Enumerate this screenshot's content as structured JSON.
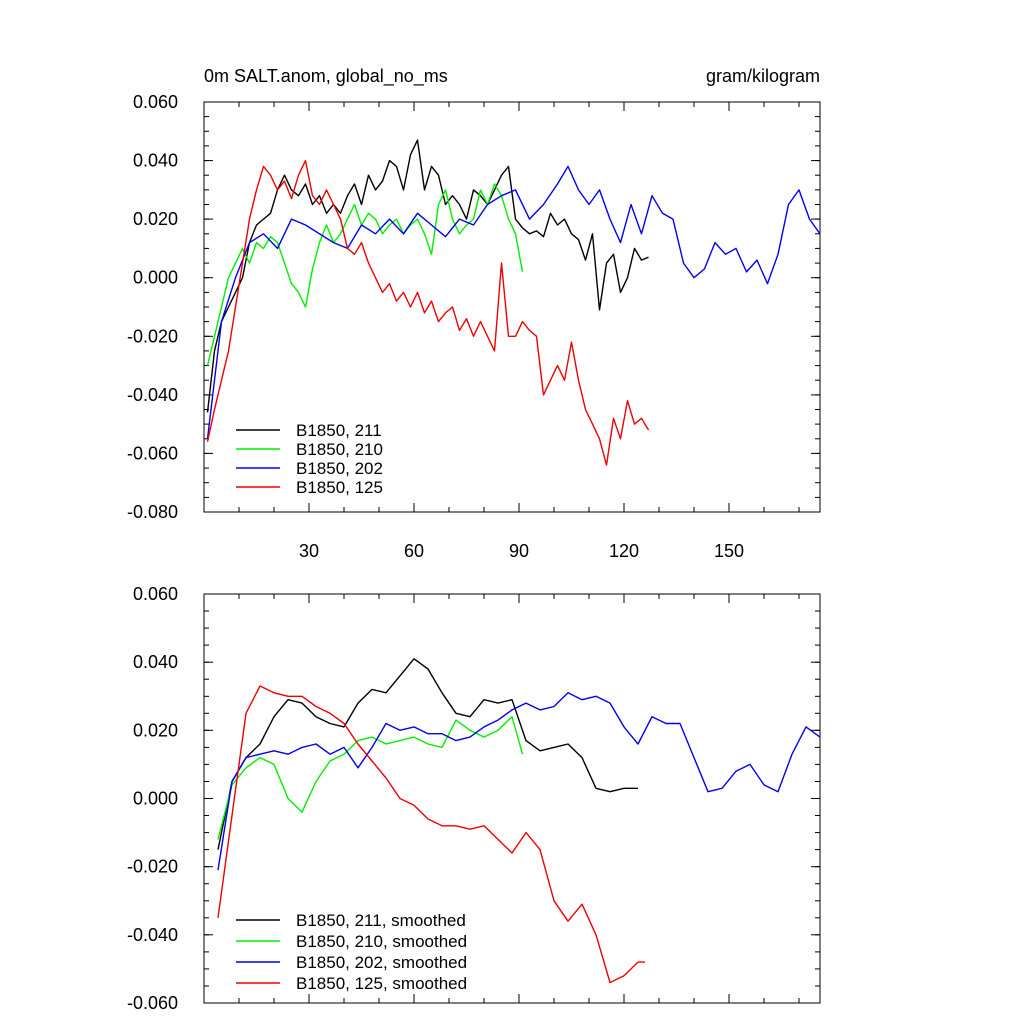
{
  "header": {
    "title_left": "0m SALT.anom, global_no_ms",
    "title_right": "gram/kilogram"
  },
  "colors": {
    "s211": "#000000",
    "s210": "#00ee00",
    "s202": "#0000ee",
    "s125": "#ee0000"
  },
  "chart_data": [
    {
      "type": "line",
      "title": "0m SALT.anom, global_no_ms",
      "units": "gram/kilogram",
      "xlim": [
        0,
        176
      ],
      "ylim": [
        -0.08,
        0.06
      ],
      "xticks": [
        30,
        60,
        90,
        120,
        150
      ],
      "xtick_labels": [
        "30",
        "60",
        "90",
        "120",
        "150"
      ],
      "yticks": [
        0.06,
        0.04,
        0.02,
        0.0,
        -0.02,
        -0.04,
        -0.06,
        -0.08
      ],
      "ytick_labels": [
        "0.060",
        "0.040",
        "0.020",
        "0.000",
        "-0.020",
        "-0.040",
        "-0.060",
        "-0.080"
      ],
      "legend_position": "bottom-left",
      "series": [
        {
          "name": "B1850, 211",
          "color_key": "s211",
          "x": [
            1,
            3,
            5,
            7,
            9,
            11,
            13,
            15,
            17,
            19,
            21,
            23,
            25,
            27,
            29,
            31,
            33,
            35,
            37,
            39,
            41,
            43,
            45,
            47,
            49,
            51,
            53,
            55,
            57,
            59,
            61,
            63,
            65,
            67,
            69,
            71,
            73,
            75,
            77,
            79,
            81,
            83,
            85,
            87,
            89,
            91,
            93,
            95,
            97,
            99,
            101,
            103,
            105,
            107,
            109,
            111,
            113,
            115,
            117,
            119,
            121,
            123,
            125,
            127
          ],
          "y": [
            -0.046,
            -0.025,
            -0.015,
            -0.01,
            -0.005,
            0.0,
            0.012,
            0.018,
            0.02,
            0.022,
            0.03,
            0.035,
            0.03,
            0.028,
            0.032,
            0.025,
            0.028,
            0.022,
            0.025,
            0.022,
            0.028,
            0.032,
            0.025,
            0.035,
            0.03,
            0.033,
            0.04,
            0.038,
            0.03,
            0.042,
            0.047,
            0.03,
            0.038,
            0.035,
            0.025,
            0.028,
            0.025,
            0.02,
            0.03,
            0.028,
            0.025,
            0.03,
            0.035,
            0.038,
            0.02,
            0.017,
            0.015,
            0.016,
            0.014,
            0.022,
            0.018,
            0.02,
            0.015,
            0.013,
            0.006,
            0.015,
            -0.011,
            0.005,
            0.008,
            -0.005,
            0.0,
            0.01,
            0.006,
            0.007
          ]
        },
        {
          "name": "B1850, 210",
          "color_key": "s210",
          "x": [
            1,
            3,
            5,
            7,
            9,
            11,
            13,
            15,
            17,
            19,
            21,
            23,
            25,
            27,
            29,
            31,
            33,
            35,
            37,
            39,
            41,
            43,
            45,
            47,
            49,
            51,
            53,
            55,
            57,
            59,
            61,
            63,
            65,
            67,
            69,
            71,
            73,
            75,
            77,
            79,
            81,
            83,
            85,
            87,
            89,
            91
          ],
          "y": [
            -0.03,
            -0.02,
            -0.01,
            0.0,
            0.005,
            0.01,
            0.005,
            0.012,
            0.01,
            0.014,
            0.012,
            0.005,
            -0.002,
            -0.005,
            -0.01,
            0.003,
            0.012,
            0.018,
            0.012,
            0.015,
            0.02,
            0.025,
            0.018,
            0.022,
            0.02,
            0.015,
            0.018,
            0.02,
            0.015,
            0.018,
            0.02,
            0.015,
            0.008,
            0.025,
            0.03,
            0.02,
            0.015,
            0.018,
            0.02,
            0.03,
            0.025,
            0.032,
            0.028,
            0.02,
            0.015,
            0.002
          ]
        },
        {
          "name": "B1850, 202",
          "color_key": "s202",
          "x": [
            1,
            5,
            9,
            13,
            17,
            21,
            25,
            29,
            33,
            37,
            41,
            45,
            49,
            53,
            57,
            61,
            65,
            69,
            73,
            77,
            81,
            85,
            89,
            93,
            97,
            101,
            104,
            107,
            110,
            113,
            116,
            119,
            122,
            125,
            128,
            131,
            134,
            137,
            140,
            143,
            146,
            149,
            152,
            155,
            158,
            161,
            164,
            167,
            170,
            173,
            176
          ],
          "y": [
            -0.055,
            -0.015,
            0.0,
            0.012,
            0.015,
            0.01,
            0.02,
            0.018,
            0.015,
            0.012,
            0.01,
            0.018,
            0.015,
            0.02,
            0.015,
            0.022,
            0.018,
            0.014,
            0.02,
            0.018,
            0.025,
            0.028,
            0.03,
            0.02,
            0.025,
            0.032,
            0.038,
            0.03,
            0.025,
            0.03,
            0.02,
            0.012,
            0.025,
            0.015,
            0.028,
            0.022,
            0.02,
            0.005,
            0.0,
            0.003,
            0.012,
            0.008,
            0.01,
            0.002,
            0.006,
            -0.002,
            0.008,
            0.025,
            0.03,
            0.02,
            0.015
          ]
        },
        {
          "name": "B1850, 125",
          "color_key": "s125",
          "x": [
            1,
            3,
            5,
            7,
            9,
            11,
            13,
            15,
            17,
            19,
            21,
            23,
            25,
            27,
            29,
            31,
            33,
            35,
            37,
            39,
            41,
            43,
            45,
            47,
            49,
            51,
            53,
            55,
            57,
            59,
            61,
            63,
            65,
            67,
            69,
            71,
            73,
            75,
            77,
            79,
            81,
            83,
            85,
            87,
            89,
            91,
            93,
            95,
            97,
            99,
            101,
            103,
            105,
            107,
            109,
            111,
            113,
            115,
            117,
            119,
            121,
            123,
            125,
            127
          ],
          "y": [
            -0.056,
            -0.045,
            -0.035,
            -0.025,
            -0.01,
            0.005,
            0.02,
            0.03,
            0.038,
            0.035,
            0.03,
            0.033,
            0.027,
            0.035,
            0.04,
            0.028,
            0.025,
            0.03,
            0.025,
            0.02,
            0.01,
            0.008,
            0.012,
            0.005,
            0.0,
            -0.005,
            -0.002,
            -0.008,
            -0.005,
            -0.01,
            -0.005,
            -0.012,
            -0.008,
            -0.015,
            -0.012,
            -0.01,
            -0.018,
            -0.014,
            -0.02,
            -0.015,
            -0.02,
            -0.025,
            0.005,
            -0.02,
            -0.02,
            -0.015,
            -0.018,
            -0.02,
            -0.04,
            -0.035,
            -0.03,
            -0.035,
            -0.022,
            -0.035,
            -0.045,
            -0.05,
            -0.055,
            -0.064,
            -0.048,
            -0.055,
            -0.042,
            -0.05,
            -0.048,
            -0.052
          ]
        }
      ]
    },
    {
      "type": "line",
      "xlim": [
        0,
        176
      ],
      "ylim": [
        -0.06,
        0.06
      ],
      "yticks": [
        0.06,
        0.04,
        0.02,
        0.0,
        -0.02,
        -0.04,
        -0.06
      ],
      "ytick_labels": [
        "0.060",
        "0.040",
        "0.020",
        "0.000",
        "-0.020",
        "-0.040",
        "-0.060"
      ],
      "legend_position": "bottom-left",
      "series": [
        {
          "name": "B1850, 211, smoothed",
          "color_key": "s211",
          "x": [
            4,
            8,
            12,
            16,
            20,
            24,
            28,
            32,
            36,
            40,
            44,
            48,
            52,
            56,
            60,
            64,
            68,
            72,
            76,
            80,
            84,
            88,
            92,
            96,
            100,
            104,
            108,
            112,
            116,
            120,
            124
          ],
          "y": [
            -0.015,
            0.005,
            0.012,
            0.016,
            0.024,
            0.029,
            0.028,
            0.024,
            0.022,
            0.021,
            0.028,
            0.032,
            0.031,
            0.036,
            0.041,
            0.038,
            0.031,
            0.025,
            0.024,
            0.029,
            0.028,
            0.029,
            0.017,
            0.014,
            0.015,
            0.016,
            0.012,
            0.003,
            0.002,
            0.003,
            0.003
          ]
        },
        {
          "name": "B1850, 210, smoothed",
          "color_key": "s210",
          "x": [
            4,
            8,
            12,
            16,
            20,
            24,
            28,
            32,
            36,
            40,
            44,
            48,
            52,
            56,
            60,
            64,
            68,
            72,
            76,
            80,
            84,
            88,
            91
          ],
          "y": [
            -0.012,
            0.004,
            0.009,
            0.012,
            0.01,
            0.0,
            -0.004,
            0.005,
            0.011,
            0.013,
            0.017,
            0.018,
            0.016,
            0.017,
            0.018,
            0.016,
            0.015,
            0.023,
            0.02,
            0.018,
            0.02,
            0.024,
            0.013
          ]
        },
        {
          "name": "B1850, 202, smoothed",
          "color_key": "s202",
          "x": [
            4,
            8,
            12,
            16,
            20,
            24,
            28,
            32,
            36,
            40,
            44,
            48,
            52,
            56,
            60,
            64,
            68,
            72,
            76,
            80,
            84,
            88,
            92,
            96,
            100,
            104,
            108,
            112,
            116,
            120,
            124,
            128,
            132,
            136,
            140,
            144,
            148,
            152,
            156,
            160,
            164,
            168,
            172,
            176
          ],
          "y": [
            -0.021,
            0.005,
            0.012,
            0.013,
            0.014,
            0.013,
            0.015,
            0.016,
            0.013,
            0.015,
            0.009,
            0.015,
            0.022,
            0.02,
            0.021,
            0.019,
            0.019,
            0.017,
            0.018,
            0.021,
            0.023,
            0.026,
            0.028,
            0.026,
            0.027,
            0.031,
            0.029,
            0.03,
            0.028,
            0.021,
            0.016,
            0.024,
            0.022,
            0.022,
            0.012,
            0.002,
            0.003,
            0.008,
            0.01,
            0.004,
            0.002,
            0.013,
            0.021,
            0.018
          ]
        },
        {
          "name": "B1850, 125, smoothed",
          "color_key": "s125",
          "x": [
            4,
            8,
            12,
            16,
            20,
            24,
            28,
            32,
            36,
            40,
            44,
            48,
            52,
            56,
            60,
            64,
            68,
            72,
            76,
            80,
            84,
            88,
            92,
            96,
            100,
            104,
            108,
            112,
            116,
            120,
            124,
            126
          ],
          "y": [
            -0.035,
            -0.005,
            0.025,
            0.033,
            0.031,
            0.03,
            0.03,
            0.027,
            0.025,
            0.022,
            0.016,
            0.011,
            0.006,
            0.0,
            -0.002,
            -0.006,
            -0.008,
            -0.008,
            -0.009,
            -0.008,
            -0.012,
            -0.016,
            -0.01,
            -0.015,
            -0.03,
            -0.036,
            -0.031,
            -0.04,
            -0.054,
            -0.052,
            -0.048,
            -0.048
          ]
        }
      ]
    }
  ]
}
